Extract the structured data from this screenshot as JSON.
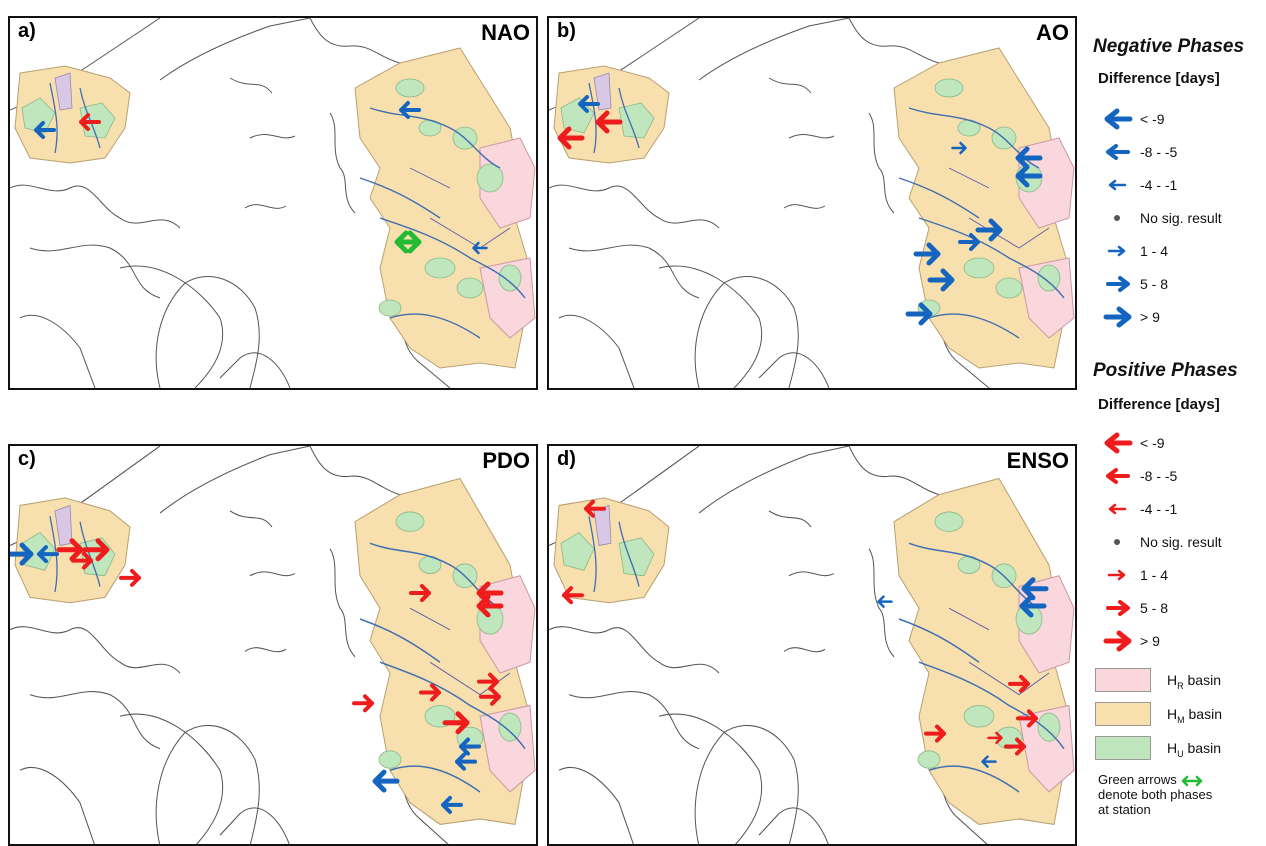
{
  "panels": [
    {
      "label": "a)",
      "title": "NAO"
    },
    {
      "label": "b)",
      "title": "AO"
    },
    {
      "label": "c)",
      "title": "PDO"
    },
    {
      "label": "d)",
      "title": "ENSO"
    }
  ],
  "legend": {
    "negative_heading": "Negative Phases",
    "negative_subheading": "Difference [days]",
    "positive_heading": "Positive Phases",
    "positive_subheading": "Difference [days]",
    "classes": [
      "< -9",
      "-8 - -5",
      "-4 - -1",
      "No sig. result",
      "1 - 4",
      "5 - 8",
      "> 9"
    ],
    "basins": {
      "hr": "basin",
      "hm": "basin",
      "hu": "basin"
    },
    "basin_letter": "H",
    "basin_subscripts": {
      "hr": "R",
      "hm": "M",
      "hu": "U"
    },
    "note_line1": "Green arrows",
    "note_line2": "denote both phases",
    "note_line3": "at station"
  },
  "colors": {
    "negative": "#1565c0",
    "positive": "#ee1c1c",
    "both": "#22bb33",
    "hr_basin": "#f9d7dc",
    "hm_basin": "#f8dfae",
    "hu_basin": "#bfe6bd",
    "river": "#3f6fb0",
    "coast": "#555555"
  },
  "icons": [
    "arrow-left-icon",
    "arrow-right-icon",
    "dot-icon",
    "double-arrow-icon"
  ]
}
